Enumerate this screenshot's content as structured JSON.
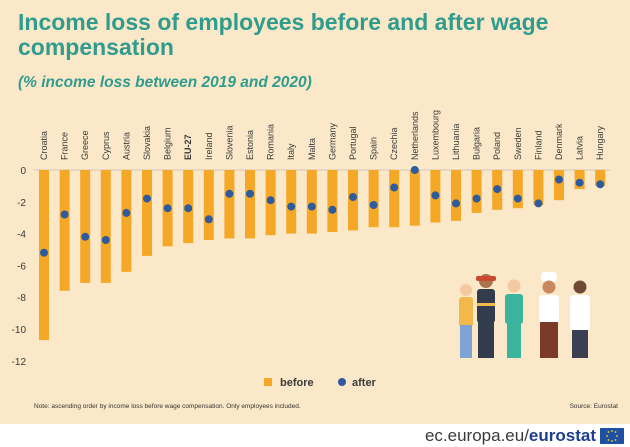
{
  "title": "Income loss of employees before and after wage compensation",
  "subtitle": "(% income loss between 2019 and 2020)",
  "note": "Note: ascending order by income loss before wage compensation. Only employees included.",
  "source": "Source: Eurostat",
  "footer": {
    "domain": "ec.europa.eu/",
    "brand": "eurostat"
  },
  "colors": {
    "before": "#f5a825",
    "after": "#2e5a9e",
    "title": "#2f9c8e",
    "background": "#fbe8c8"
  },
  "chart_data": {
    "type": "bar",
    "categories": [
      "Croatia",
      "France",
      "Greece",
      "Cyprus",
      "Austria",
      "Slovakia",
      "Belgium",
      "EU-27",
      "Ireland",
      "Slovenia",
      "Estonia",
      "Romania",
      "Italy",
      "Malta",
      "Germany",
      "Portugal",
      "Spain",
      "Czechia",
      "Netherlands",
      "Luxembourg",
      "Lithuania",
      "Bulgaria",
      "Poland",
      "Sweden",
      "Finland",
      "Denmark",
      "Latvia",
      "Hungary"
    ],
    "series": [
      {
        "name": "before",
        "values": [
          -10.7,
          -7.6,
          -7.1,
          -7.1,
          -6.4,
          -5.4,
          -4.8,
          -4.6,
          -4.4,
          -4.3,
          -4.3,
          -4.1,
          -4.0,
          -4.0,
          -3.9,
          -3.8,
          -3.6,
          -3.6,
          -3.5,
          -3.3,
          -3.2,
          -2.7,
          -2.5,
          -2.4,
          -2.2,
          -1.9,
          -1.2,
          -1.0
        ]
      },
      {
        "name": "after",
        "values": [
          -5.2,
          -2.8,
          -4.2,
          -4.4,
          -2.7,
          -1.8,
          -2.4,
          -2.4,
          -3.1,
          -1.5,
          -1.5,
          -1.9,
          -2.3,
          -2.3,
          -2.5,
          -1.7,
          -2.2,
          -1.1,
          0.0,
          -1.6,
          -2.1,
          -1.8,
          -1.2,
          -1.8,
          -2.1,
          -0.6,
          -0.8,
          -0.9
        ]
      }
    ],
    "highlight_category": "EU-27",
    "yticks": [
      "0",
      "-2",
      "-4",
      "-6",
      "-8",
      "-10",
      "-12"
    ],
    "ylim": [
      -12,
      0
    ],
    "legend_position": "bottom-center",
    "grid": false
  }
}
